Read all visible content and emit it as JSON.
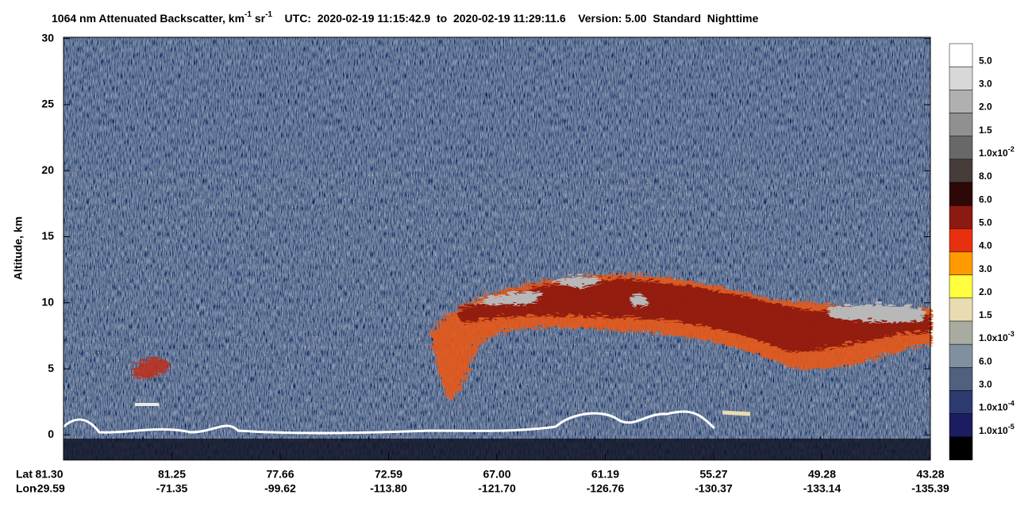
{
  "chart_data": {
    "type": "heatmap",
    "title_parts": [
      {
        "text": "1064 nm Attenuated Backscatter, km"
      },
      {
        "sup": "-1"
      },
      {
        "text": " sr"
      },
      {
        "sup": "-1"
      },
      {
        "text": "    UTC:  2020-02-19 11:15:42.9  to  2020-02-19 11:29:11.6    Version: 5.00  Standard  Nighttime"
      }
    ],
    "y_label": "Altitude, km",
    "ylim": [
      -1.9,
      30.1
    ],
    "yticks": [
      0,
      5,
      10,
      15,
      20,
      25,
      30
    ],
    "x_label_rows": [
      {
        "name": "Lat",
        "labels": [
          "81.30",
          "81.25",
          "77.66",
          "72.59",
          "67.00",
          "61.19",
          "55.27",
          "49.28",
          "43.28"
        ]
      },
      {
        "name": "Lon",
        "labels": [
          "-29.59",
          "-71.35",
          "-99.62",
          "-113.80",
          "-121.70",
          "-126.76",
          "-130.37",
          "-133.14",
          "-135.39"
        ]
      }
    ],
    "colorbar": {
      "colors": [
        "#ffffff",
        "#d8d8d8",
        "#b0b0b0",
        "#909090",
        "#686868",
        "#463c3a",
        "#2e0806",
        "#8b1a10",
        "#e83010",
        "#ff9a00",
        "#ffff40",
        "#e8dcb0",
        "#a8aca0",
        "#8090a0",
        "#50607e",
        "#2c3a70",
        "#1c1c60",
        "#000000"
      ],
      "labels": [
        "5.0",
        "3.0",
        "2.0",
        "1.5",
        {
          "label": "1.0x10",
          "sup": "-2"
        },
        "8.0",
        "6.0",
        "5.0",
        "4.0",
        "3.0",
        "2.0",
        "1.5",
        {
          "label": "1.0x10",
          "sup": "-3"
        },
        "6.0",
        "3.0",
        {
          "label": "1.0x10",
          "sup": "-4"
        },
        {
          "label": "1.0x10",
          "sup": "-5"
        }
      ]
    }
  }
}
